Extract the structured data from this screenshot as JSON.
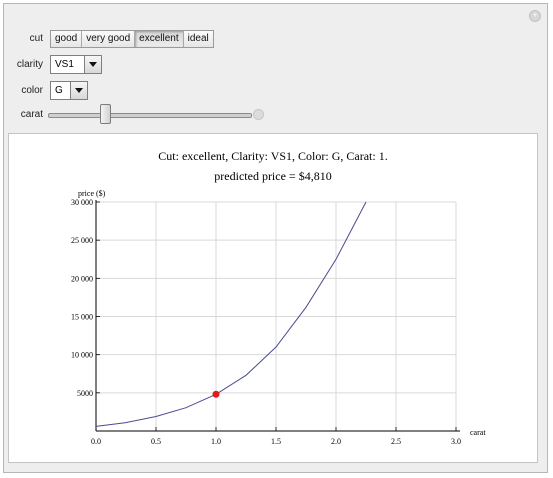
{
  "controls": {
    "cut": {
      "label": "cut",
      "options": [
        "good",
        "very good",
        "excellent",
        "ideal"
      ],
      "selected": "excellent"
    },
    "clarity": {
      "label": "clarity",
      "value": "VS1"
    },
    "color": {
      "label": "color",
      "value": "G"
    },
    "carat": {
      "label": "carat",
      "value": 1.0,
      "min": 0.2,
      "max": 3.0
    }
  },
  "plot": {
    "title_line1": "Cut: excellent, Clarity: VS1, Color: G, Carat: 1.",
    "title_line2": "predicted price = $4,810"
  },
  "chart_data": {
    "type": "line",
    "title": "Cut: excellent, Clarity: VS1, Color: G, Carat: 1. predicted price = $4,810",
    "xlabel": "carat",
    "ylabel": "price ($)",
    "xlim": [
      0,
      3.0
    ],
    "ylim": [
      0,
      30000
    ],
    "x_ticks": [
      "0.0",
      "0.5",
      "1.0",
      "1.5",
      "2.0",
      "2.5",
      "3.0"
    ],
    "y_ticks": [
      "5000",
      "10 000",
      "15 000",
      "20 000",
      "25 000",
      "30 000"
    ],
    "grid": true,
    "series": [
      {
        "color": "#4b4b8f",
        "x": [
          0.0,
          0.25,
          0.5,
          0.75,
          1.0,
          1.25,
          1.5,
          1.75,
          2.0,
          2.25
        ],
        "y": [
          600,
          1100,
          1900,
          3050,
          4810,
          7300,
          11000,
          16200,
          22500,
          30000
        ]
      }
    ],
    "highlight_point": {
      "x": 1.0,
      "y": 4810,
      "color": "#e01b1b"
    }
  }
}
